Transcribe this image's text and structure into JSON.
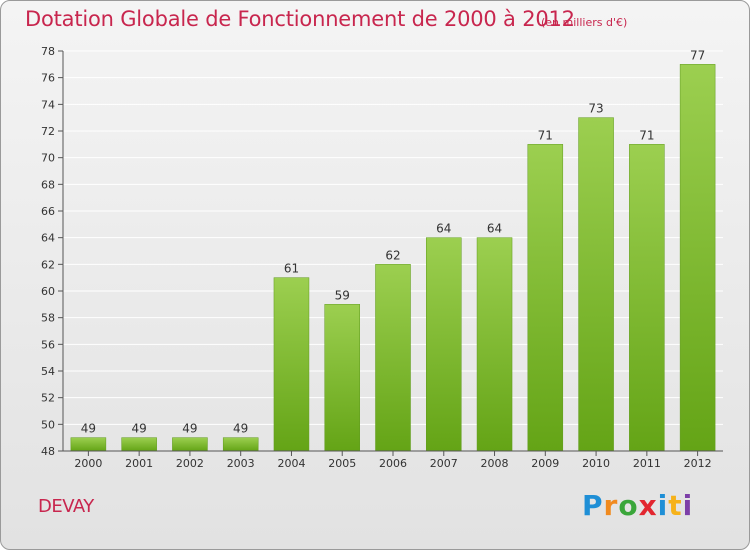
{
  "header": {
    "title": "Dotation Globale de Fonctionnement de 2000 à 2012",
    "subtitle": "(en milliers d'€)"
  },
  "footer": {
    "commune": "DEVAY",
    "brand_letters": [
      "P",
      "r",
      "o",
      "x",
      "i",
      "t",
      "i"
    ],
    "brand": "Proxiti"
  },
  "colors": {
    "accent": "#c8264e",
    "bar_top": "#9ccf50",
    "bar_bottom": "#64a416",
    "grid": "#ffffff",
    "axis": "#555555"
  },
  "chart_data": {
    "type": "bar",
    "title": "Dotation Globale de Fonctionnement de 2000 à 2012",
    "subtitle": "(en milliers d'€)",
    "categories": [
      "2000",
      "2001",
      "2002",
      "2003",
      "2004",
      "2005",
      "2006",
      "2007",
      "2008",
      "2009",
      "2010",
      "2011",
      "2012"
    ],
    "values": [
      49,
      49,
      49,
      49,
      61,
      59,
      62,
      64,
      64,
      71,
      73,
      71,
      77
    ],
    "ylim": [
      48,
      78
    ],
    "yticks": [
      48,
      50,
      52,
      54,
      56,
      58,
      60,
      62,
      64,
      66,
      68,
      70,
      72,
      74,
      76,
      78
    ],
    "grid": true,
    "data_labels": true,
    "xlabel": "",
    "ylabel": ""
  }
}
